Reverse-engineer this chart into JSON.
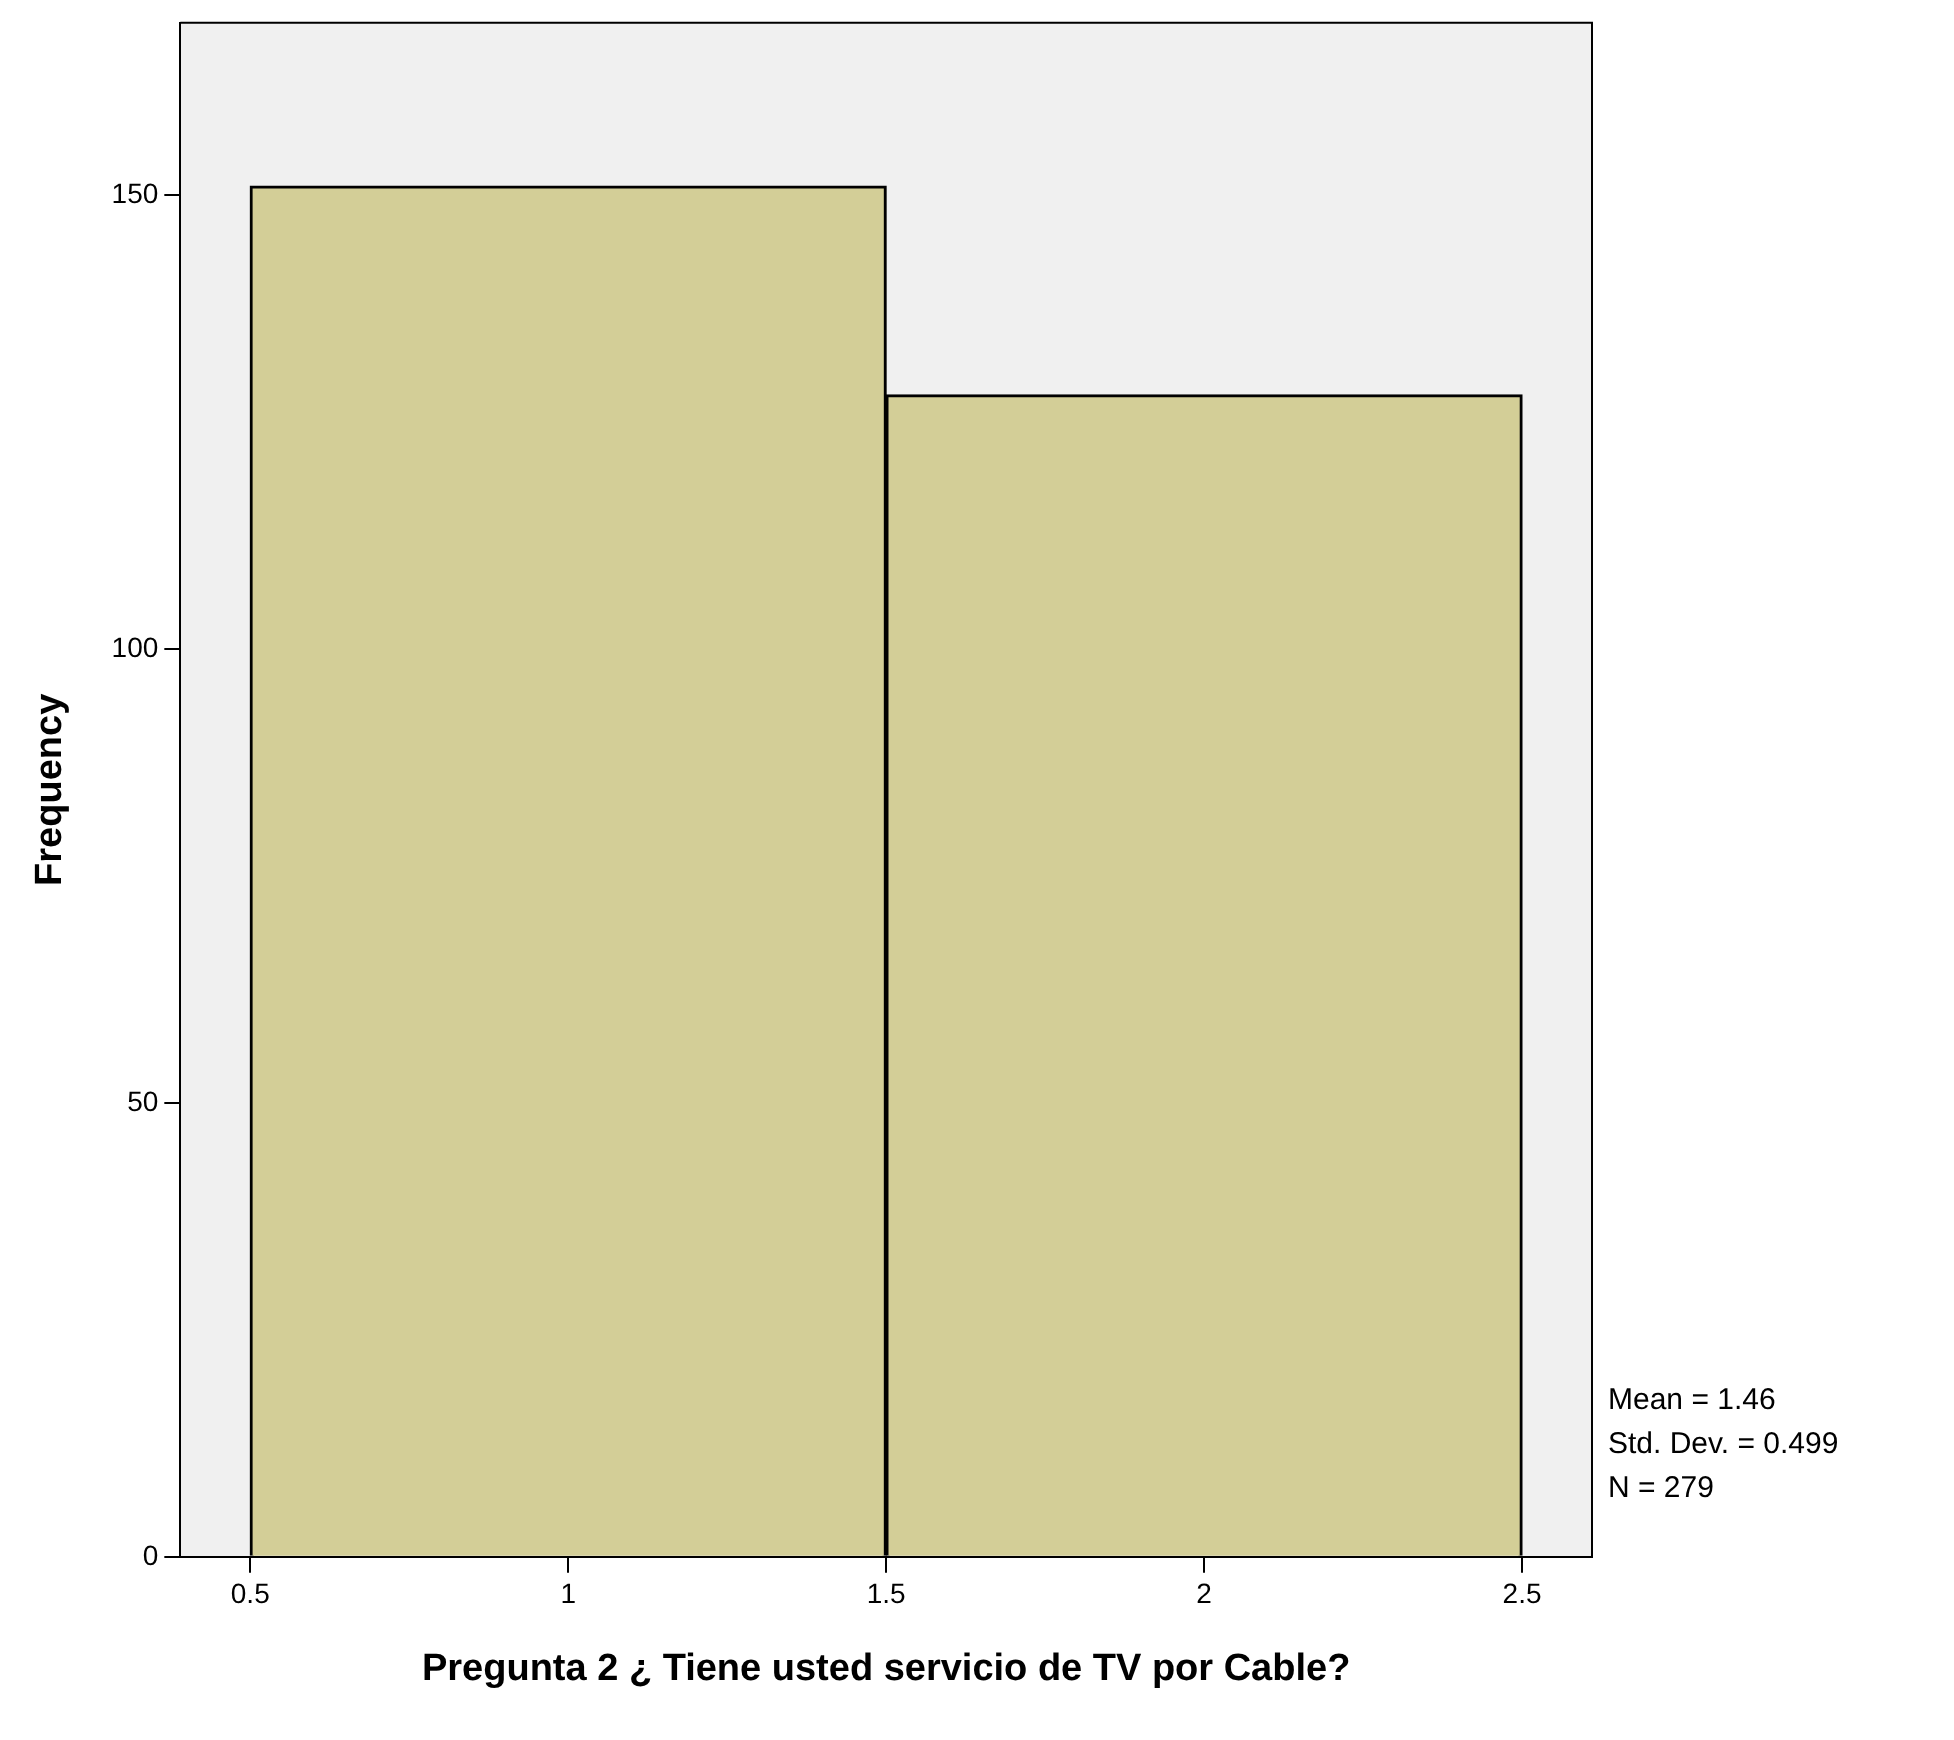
{
  "chart_data": {
    "type": "histogram",
    "xlabel": "Pregunta 2 ¿ Tiene usted servicio de TV por Cable?",
    "ylabel": "Frequency",
    "bins": [
      0.5,
      1.5,
      2.5
    ],
    "values": [
      151,
      128
    ],
    "color": "#d3ce97",
    "xlim": [
      0.39,
      2.61
    ],
    "xticks": [
      0.5,
      1,
      1.5,
      2,
      2.5
    ],
    "ylim": [
      0,
      169
    ],
    "yticks": [
      0,
      50,
      100,
      150
    ],
    "grid": false,
    "annotations": [
      "Mean = 1.46",
      "Std. Dev. = 0.499",
      "N = 279"
    ]
  }
}
